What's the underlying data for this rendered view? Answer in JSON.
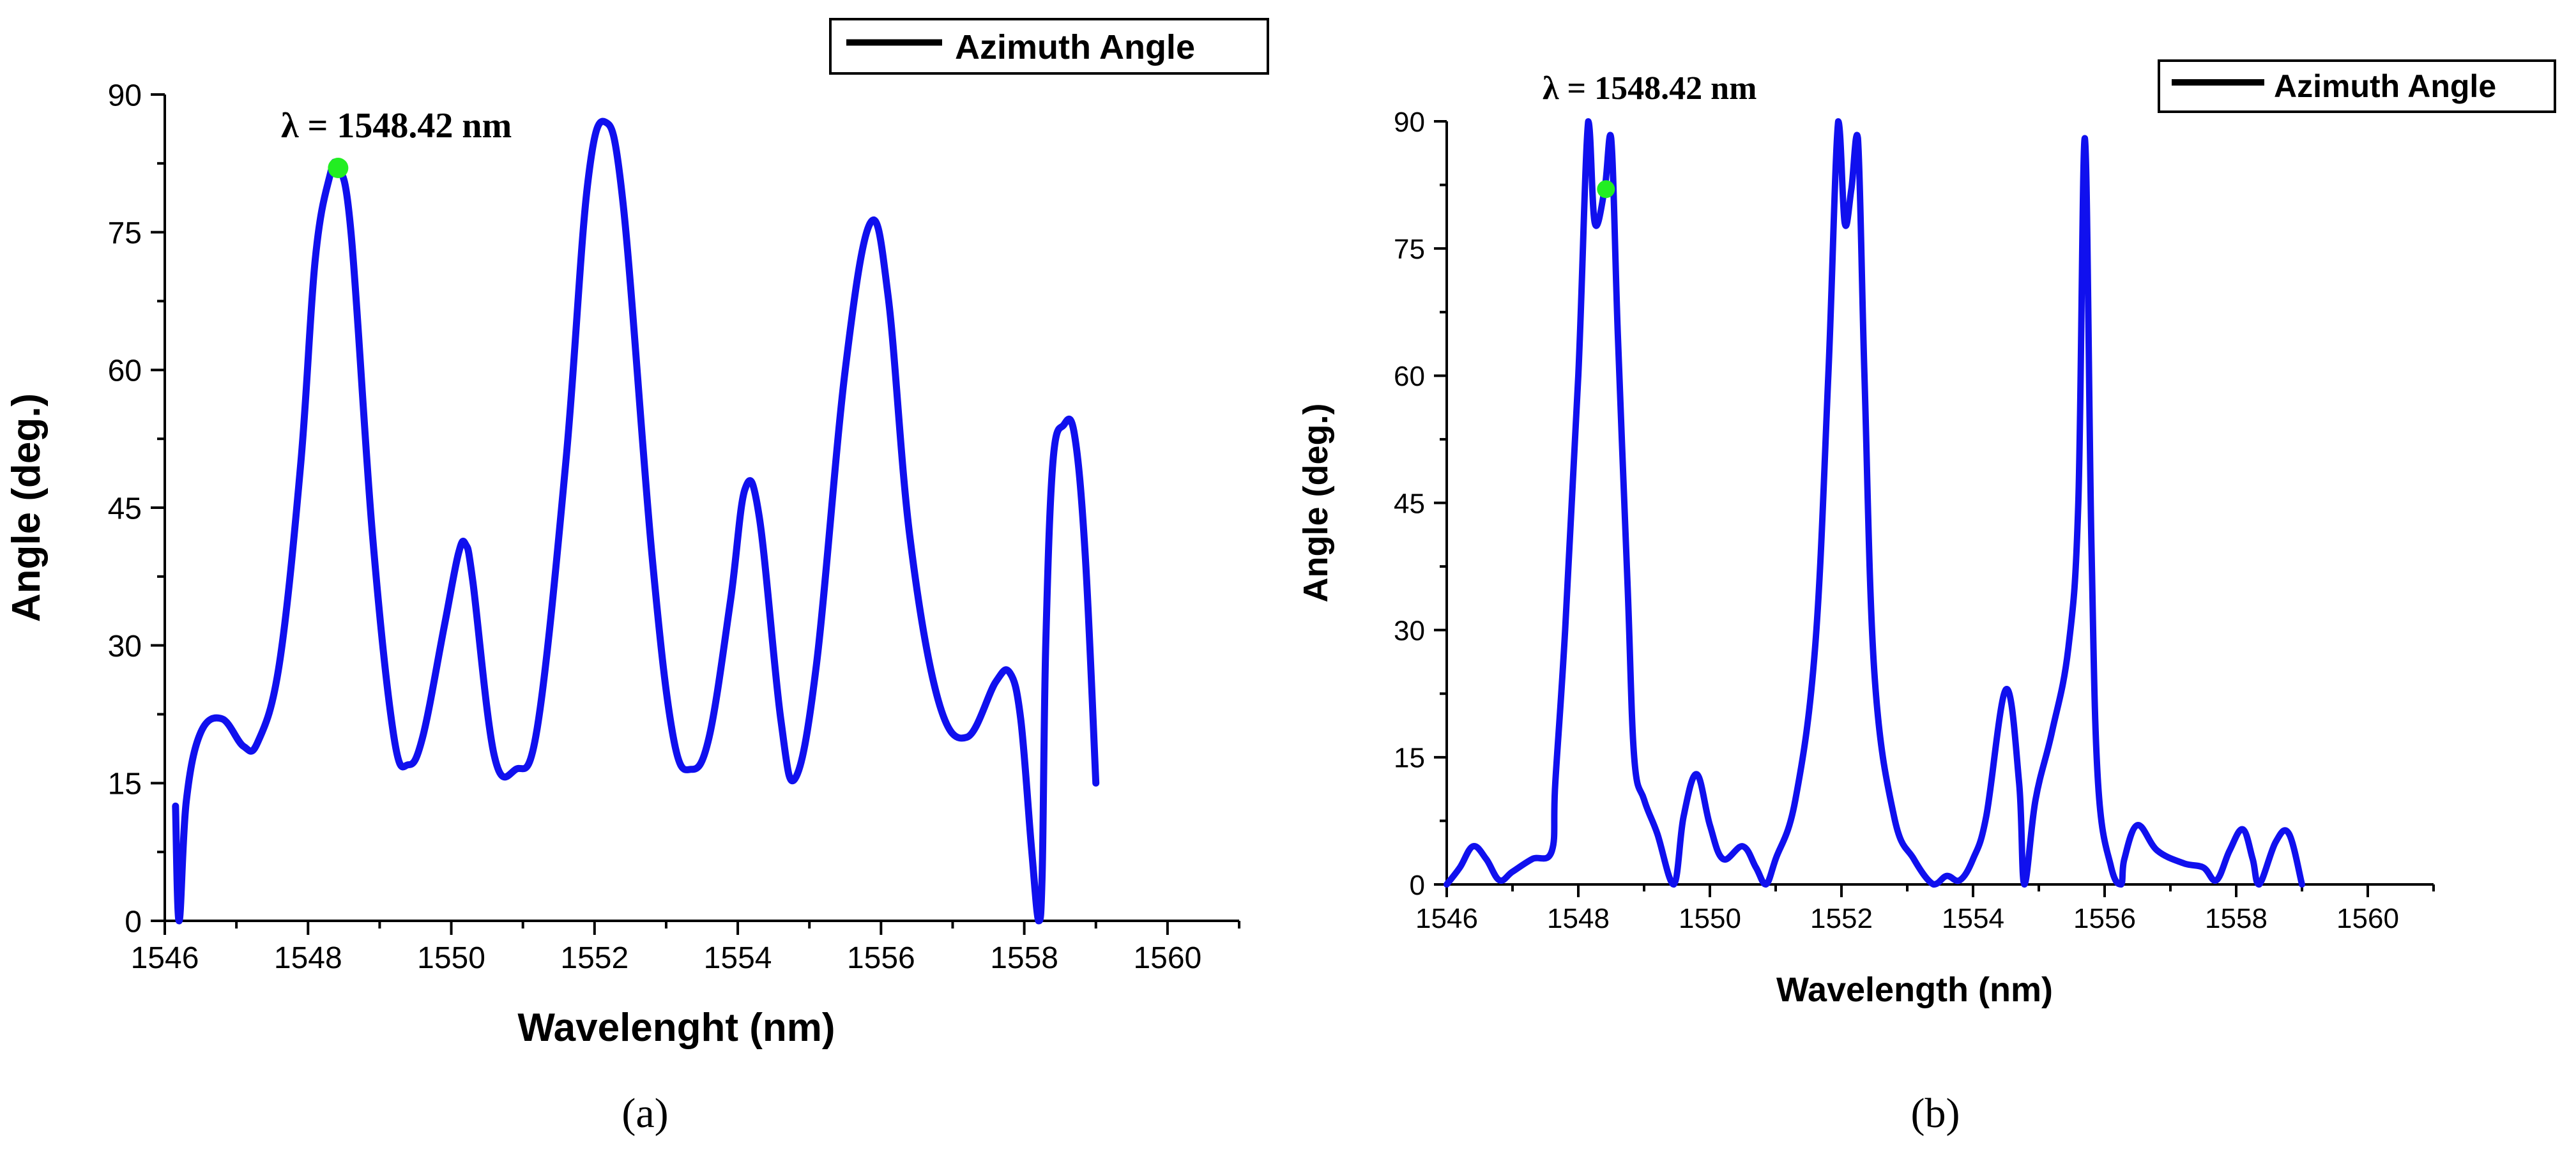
{
  "colors": {
    "line": "#1010ee",
    "marker": "#22ee22",
    "axis": "#000000"
  },
  "chart_data": [
    {
      "panel_label": "(a)",
      "type": "line",
      "title": "",
      "xlabel": "Wavelenght (nm)",
      "ylabel": "Angle (deg.)",
      "xlim": [
        1546,
        1561
      ],
      "ylim": [
        0,
        90
      ],
      "xticks": [
        1546,
        1548,
        1550,
        1552,
        1554,
        1556,
        1558,
        1560
      ],
      "yticks": [
        0,
        15,
        30,
        45,
        60,
        75,
        90
      ],
      "legend": {
        "label": "Azimuth Angle",
        "position": "top-right"
      },
      "annotation": {
        "text": "λ = 1548.42 nm",
        "x": 1548.42,
        "y": 82
      },
      "series": [
        {
          "name": "Azimuth Angle",
          "x": [
            1546.15,
            1546.2,
            1546.3,
            1546.5,
            1546.8,
            1547.1,
            1547.3,
            1547.6,
            1547.9,
            1548.1,
            1548.3,
            1548.42,
            1548.6,
            1548.9,
            1549.2,
            1549.4,
            1549.6,
            1549.9,
            1550.1,
            1550.2,
            1550.3,
            1550.6,
            1550.9,
            1551.2,
            1551.6,
            1551.9,
            1552.15,
            1552.4,
            1552.8,
            1553.1,
            1553.35,
            1553.6,
            1553.9,
            1554.1,
            1554.3,
            1554.6,
            1554.8,
            1555.1,
            1555.5,
            1555.85,
            1556.1,
            1556.4,
            1556.8,
            1557.2,
            1557.6,
            1557.8,
            1557.95,
            1558.1,
            1558.2,
            1558.25,
            1558.3,
            1558.4,
            1558.55,
            1558.7,
            1558.85,
            1559.0
          ],
          "values": [
            12.5,
            0,
            13,
            20.5,
            22,
            19,
            19.5,
            28,
            50,
            72,
            81,
            82,
            75,
            42,
            20,
            17,
            20,
            32,
            40,
            41,
            37,
            18,
            16.5,
            21,
            50,
            80,
            87,
            78,
            40,
            20,
            16.5,
            20,
            35,
            47,
            44,
            22,
            15.5,
            28,
            60,
            76,
            68,
            42,
            24,
            20,
            26,
            27,
            22,
            8,
            0,
            5,
            30,
            50,
            54,
            53,
            40,
            15
          ]
        }
      ]
    },
    {
      "panel_label": "(b)",
      "type": "line",
      "title": "",
      "xlabel": "Wavelength (nm)",
      "ylabel": "Angle (deg.)",
      "xlim": [
        1546,
        1561
      ],
      "ylim": [
        0,
        90
      ],
      "xticks": [
        1546,
        1548,
        1550,
        1552,
        1554,
        1556,
        1558,
        1560
      ],
      "yticks": [
        0,
        15,
        30,
        45,
        60,
        75,
        90
      ],
      "legend": {
        "label": "Azimuth Angle",
        "position": "top-right"
      },
      "annotation": {
        "text": "λ = 1548.42 nm",
        "x": 1548.42,
        "y": 82
      },
      "series": [
        {
          "name": "Azimuth Angle",
          "x": [
            1546.0,
            1546.2,
            1546.4,
            1546.6,
            1546.8,
            1547.0,
            1547.3,
            1547.6,
            1547.65,
            1547.8,
            1548.0,
            1548.15,
            1548.25,
            1548.4,
            1548.5,
            1548.6,
            1548.75,
            1548.85,
            1549.0,
            1549.2,
            1549.45,
            1549.6,
            1549.8,
            1550.0,
            1550.2,
            1550.5,
            1550.7,
            1550.85,
            1551.0,
            1551.3,
            1551.6,
            1551.8,
            1551.95,
            1552.05,
            1552.15,
            1552.25,
            1552.35,
            1552.5,
            1552.8,
            1553.1,
            1553.4,
            1553.6,
            1553.8,
            1554.0,
            1554.2,
            1554.5,
            1554.7,
            1554.78,
            1554.95,
            1555.2,
            1555.45,
            1555.6,
            1555.7,
            1555.8,
            1555.9,
            1556.1,
            1556.25,
            1556.3,
            1556.5,
            1556.8,
            1557.2,
            1557.5,
            1557.7,
            1557.9,
            1558.1,
            1558.25,
            1558.35,
            1558.6,
            1558.8,
            1559.0
          ],
          "values": [
            0,
            2,
            4.5,
            3,
            0.5,
            1.5,
            3,
            4,
            12,
            30,
            60,
            90,
            78,
            82,
            88,
            65,
            35,
            15,
            10,
            6,
            0,
            8,
            13,
            7,
            3,
            4.5,
            2,
            0,
            3,
            10,
            28,
            60,
            90,
            78,
            82,
            88,
            60,
            25,
            8,
            3,
            0,
            1,
            0.5,
            3,
            8,
            23,
            12,
            0,
            10,
            18,
            28,
            45,
            88,
            40,
            12,
            2,
            0,
            3,
            7,
            4,
            2.5,
            2,
            0.5,
            4,
            6.5,
            3,
            0,
            5,
            6,
            0
          ]
        }
      ]
    }
  ]
}
